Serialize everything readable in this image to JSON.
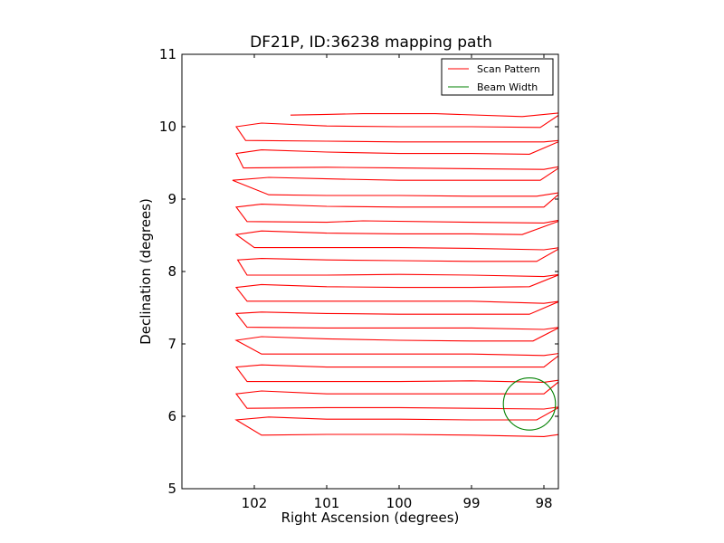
{
  "chart_data": {
    "type": "line",
    "title": "DF21P, ID:36238 mapping path",
    "xlabel": "Right Ascension (degrees)",
    "ylabel": "Declination (degrees)",
    "xlim": [
      103.0,
      97.8
    ],
    "ylim": [
      5,
      11
    ],
    "x_ticks": [
      102,
      101,
      100,
      99,
      98
    ],
    "x_tick_labels": [
      "102",
      "101",
      "100",
      "99",
      "98"
    ],
    "y_ticks": [
      5,
      6,
      7,
      8,
      9,
      10,
      11
    ],
    "y_tick_labels": [
      "5",
      "6",
      "7",
      "8",
      "9",
      "10",
      "11"
    ],
    "grid": false,
    "legend": {
      "placement": "top-right",
      "entries": [
        {
          "label": "Scan Pattern",
          "color": "#ff0000"
        },
        {
          "label": "Beam Width",
          "color": "#008000"
        }
      ]
    },
    "series": [
      {
        "name": "Scan Pattern",
        "color": "#ff0000",
        "points": [
          [
            101.5,
            10.16
          ],
          [
            101.0,
            10.17
          ],
          [
            100.5,
            10.18
          ],
          [
            99.5,
            10.18
          ],
          [
            98.3,
            10.14
          ],
          [
            97.78,
            10.19
          ],
          [
            97.78,
            10.17
          ],
          [
            98.05,
            9.99
          ],
          [
            99.0,
            10.0
          ],
          [
            100.0,
            10.0
          ],
          [
            101.0,
            10.01
          ],
          [
            101.9,
            10.05
          ],
          [
            102.25,
            10.0
          ],
          [
            102.12,
            9.81
          ],
          [
            101.0,
            9.8
          ],
          [
            100.0,
            9.79
          ],
          [
            99.0,
            9.79
          ],
          [
            98.0,
            9.79
          ],
          [
            97.78,
            9.81
          ],
          [
            97.78,
            9.8
          ],
          [
            98.2,
            9.62
          ],
          [
            99.0,
            9.63
          ],
          [
            100.0,
            9.63
          ],
          [
            101.0,
            9.65
          ],
          [
            101.9,
            9.68
          ],
          [
            102.25,
            9.63
          ],
          [
            102.15,
            9.43
          ],
          [
            101.0,
            9.44
          ],
          [
            100.0,
            9.43
          ],
          [
            99.0,
            9.42
          ],
          [
            98.0,
            9.41
          ],
          [
            97.78,
            9.45
          ],
          [
            97.78,
            9.44
          ],
          [
            98.05,
            9.26
          ],
          [
            99.0,
            9.26
          ],
          [
            100.0,
            9.26
          ],
          [
            101.0,
            9.28
          ],
          [
            101.8,
            9.3
          ],
          [
            102.3,
            9.26
          ],
          [
            101.8,
            9.06
          ],
          [
            101.0,
            9.05
          ],
          [
            100.0,
            9.05
          ],
          [
            99.0,
            9.04
          ],
          [
            98.1,
            9.04
          ],
          [
            97.78,
            9.09
          ],
          [
            97.78,
            9.08
          ],
          [
            98.0,
            8.89
          ],
          [
            99.0,
            8.89
          ],
          [
            100.0,
            8.89
          ],
          [
            101.0,
            8.9
          ],
          [
            101.9,
            8.93
          ],
          [
            102.25,
            8.89
          ],
          [
            102.1,
            8.69
          ],
          [
            101.0,
            8.68
          ],
          [
            100.5,
            8.7
          ],
          [
            99.0,
            8.68
          ],
          [
            98.0,
            8.67
          ],
          [
            97.78,
            8.71
          ],
          [
            97.78,
            8.7
          ],
          [
            98.3,
            8.51
          ],
          [
            99.0,
            8.52
          ],
          [
            100.0,
            8.52
          ],
          [
            101.0,
            8.53
          ],
          [
            101.9,
            8.56
          ],
          [
            102.25,
            8.51
          ],
          [
            102.0,
            8.33
          ],
          [
            101.0,
            8.33
          ],
          [
            100.0,
            8.33
          ],
          [
            99.0,
            8.32
          ],
          [
            98.0,
            8.3
          ],
          [
            97.78,
            8.33
          ],
          [
            97.78,
            8.32
          ],
          [
            98.1,
            8.14
          ],
          [
            99.0,
            8.14
          ],
          [
            100.0,
            8.15
          ],
          [
            101.0,
            8.16
          ],
          [
            101.9,
            8.18
          ],
          [
            102.23,
            8.16
          ],
          [
            102.1,
            7.95
          ],
          [
            101.0,
            7.95
          ],
          [
            100.0,
            7.96
          ],
          [
            99.0,
            7.95
          ],
          [
            98.0,
            7.93
          ],
          [
            97.78,
            7.96
          ],
          [
            97.78,
            7.96
          ],
          [
            98.2,
            7.79
          ],
          [
            99.0,
            7.78
          ],
          [
            100.0,
            7.78
          ],
          [
            101.0,
            7.79
          ],
          [
            101.9,
            7.82
          ],
          [
            102.25,
            7.78
          ],
          [
            102.1,
            7.59
          ],
          [
            101.0,
            7.59
          ],
          [
            100.0,
            7.59
          ],
          [
            99.0,
            7.59
          ],
          [
            98.0,
            7.56
          ],
          [
            97.78,
            7.59
          ],
          [
            97.78,
            7.59
          ],
          [
            98.2,
            7.41
          ],
          [
            99.0,
            7.41
          ],
          [
            100.0,
            7.41
          ],
          [
            101.0,
            7.42
          ],
          [
            101.9,
            7.44
          ],
          [
            102.25,
            7.42
          ],
          [
            102.1,
            7.23
          ],
          [
            101.0,
            7.22
          ],
          [
            100.0,
            7.22
          ],
          [
            99.0,
            7.22
          ],
          [
            98.0,
            7.2
          ],
          [
            97.78,
            7.23
          ],
          [
            97.78,
            7.23
          ],
          [
            98.15,
            7.04
          ],
          [
            99.0,
            7.04
          ],
          [
            100.0,
            7.05
          ],
          [
            101.0,
            7.07
          ],
          [
            101.9,
            7.1
          ],
          [
            102.25,
            7.05
          ],
          [
            101.9,
            6.86
          ],
          [
            101.0,
            6.86
          ],
          [
            100.0,
            6.86
          ],
          [
            99.0,
            6.86
          ],
          [
            98.0,
            6.84
          ],
          [
            97.78,
            6.87
          ],
          [
            97.78,
            6.85
          ],
          [
            98.0,
            6.68
          ],
          [
            99.0,
            6.68
          ],
          [
            100.0,
            6.68
          ],
          [
            101.0,
            6.68
          ],
          [
            101.9,
            6.71
          ],
          [
            102.25,
            6.68
          ],
          [
            102.1,
            6.48
          ],
          [
            101.0,
            6.48
          ],
          [
            100.0,
            6.48
          ],
          [
            99.0,
            6.49
          ],
          [
            98.0,
            6.47
          ],
          [
            97.78,
            6.5
          ],
          [
            97.78,
            6.49
          ],
          [
            98.0,
            6.31
          ],
          [
            99.0,
            6.31
          ],
          [
            100.0,
            6.31
          ],
          [
            101.0,
            6.31
          ],
          [
            101.9,
            6.35
          ],
          [
            102.25,
            6.31
          ],
          [
            102.1,
            6.11
          ],
          [
            101.0,
            6.12
          ],
          [
            100.0,
            6.12
          ],
          [
            99.0,
            6.11
          ],
          [
            98.0,
            6.1
          ],
          [
            97.78,
            6.13
          ],
          [
            97.78,
            6.13
          ],
          [
            98.1,
            5.95
          ],
          [
            99.0,
            5.95
          ],
          [
            100.0,
            5.96
          ],
          [
            101.0,
            5.96
          ],
          [
            101.8,
            5.99
          ],
          [
            102.25,
            5.95
          ],
          [
            101.9,
            5.74
          ],
          [
            101.0,
            5.75
          ],
          [
            100.0,
            5.75
          ],
          [
            99.0,
            5.74
          ],
          [
            98.0,
            5.72
          ],
          [
            97.78,
            5.75
          ]
        ]
      },
      {
        "name": "Beam Width",
        "color": "#008000",
        "shape": "circle",
        "center": [
          98.2,
          6.17
        ],
        "radius_deg": 0.36
      }
    ]
  }
}
